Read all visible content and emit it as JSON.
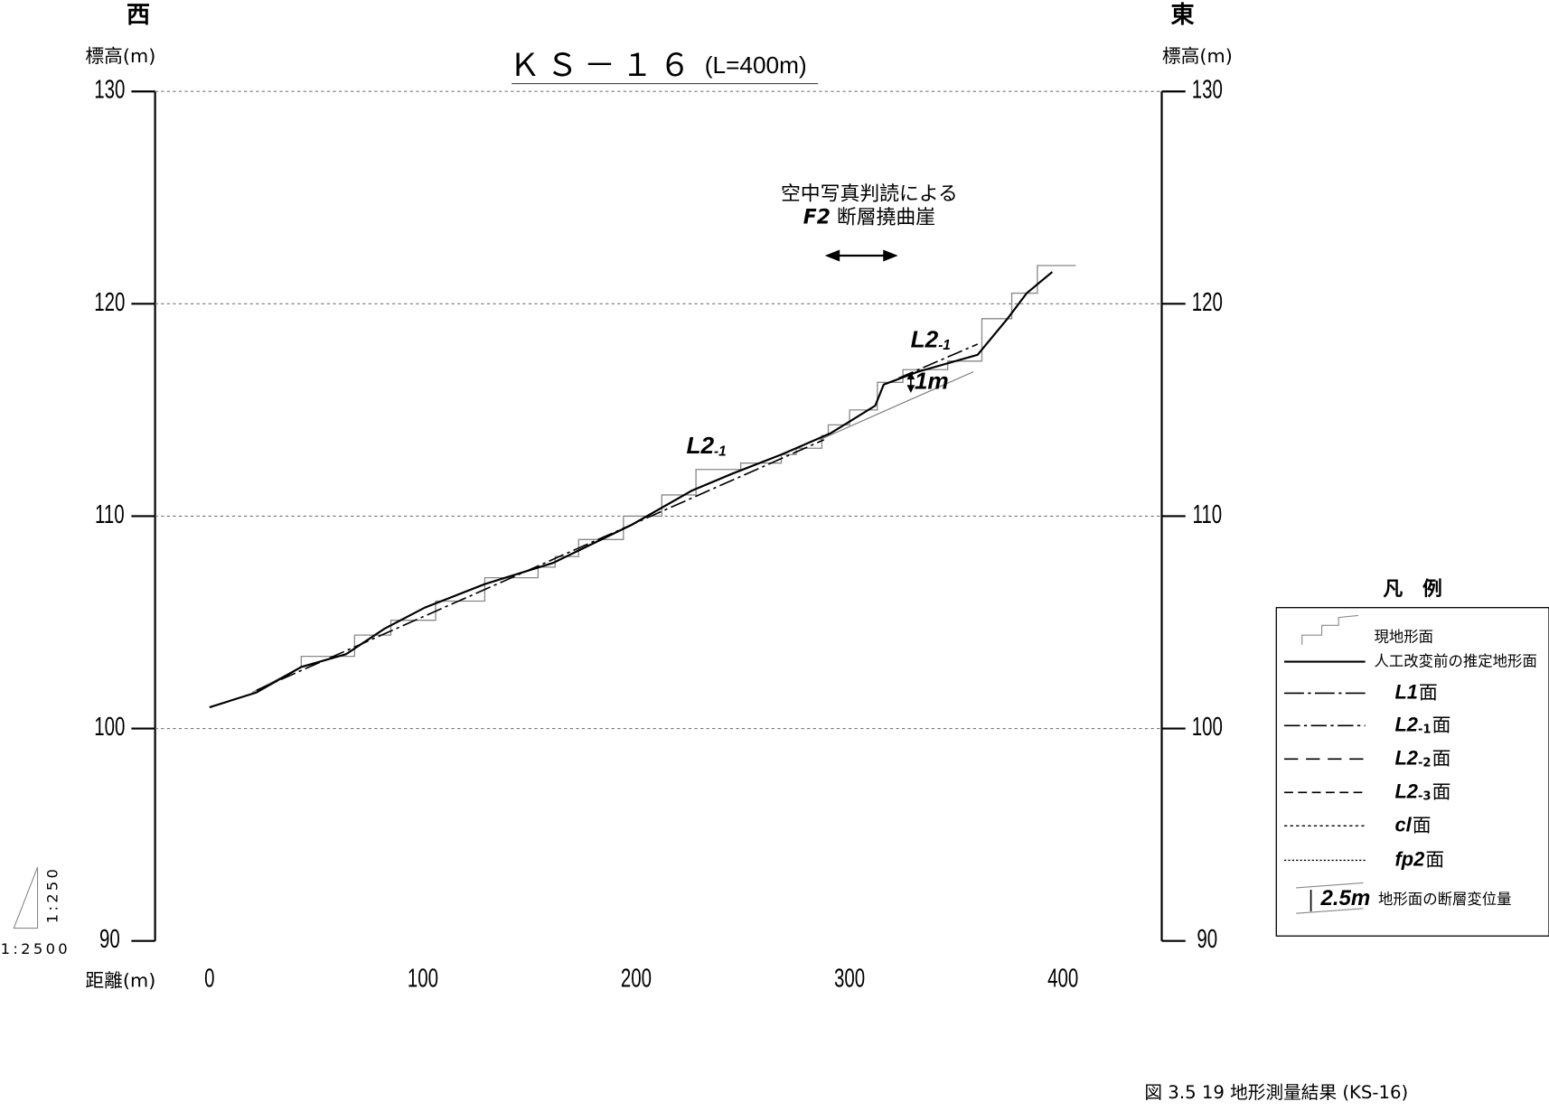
{
  "chart_data": {
    "type": "line",
    "title": "ＫＳ－１６",
    "subtitle": "(L=400m)",
    "west": "西",
    "east": "東",
    "ylabel": "標高(m)",
    "y2label": "標高(m)",
    "xlabel": "距離(m)",
    "xlim": [
      -25.5,
      446.3
    ],
    "xticks": [
      0,
      100,
      200,
      300,
      400
    ],
    "ylim": [
      90,
      130
    ],
    "yticks": [
      90,
      100,
      110,
      120,
      130
    ],
    "y2lim": [
      90,
      130
    ],
    "y2ticks": [
      90,
      100,
      110,
      120,
      130
    ],
    "grid": true,
    "series": [
      {
        "name": "現地形面",
        "color": "#888888",
        "style": "ground",
        "x": [
          20,
          43,
          43,
          68,
          68,
          85,
          85,
          106,
          106,
          129,
          129,
          154,
          154,
          162,
          162,
          173,
          173,
          194,
          194,
          212,
          212,
          228,
          228,
          249,
          249,
          268,
          268,
          275,
          275,
          287,
          287,
          290,
          290,
          300,
          300,
          313,
          313,
          325,
          325,
          346,
          346,
          362,
          362,
          376,
          376,
          388,
          388,
          406
        ],
        "values": [
          101.7,
          102.9,
          103.4,
          103.4,
          104.4,
          104.4,
          105.1,
          105.1,
          106.0,
          106.0,
          107.1,
          107.1,
          107.6,
          107.6,
          108.1,
          108.1,
          108.9,
          108.9,
          110.0,
          110.0,
          111.0,
          111.0,
          112.2,
          112.2,
          112.5,
          112.5,
          112.9,
          112.9,
          113.2,
          113.2,
          113.8,
          113.8,
          114.3,
          114.3,
          115.0,
          115.0,
          116.3,
          116.3,
          116.9,
          116.9,
          117.3,
          117.3,
          119.3,
          119.3,
          120.5,
          120.5,
          121.8,
          121.8
        ]
      },
      {
        "name": "人工改変前の推定地形面",
        "color": "#000000",
        "style": "solid",
        "x": [
          0,
          22,
          43,
          64,
          82,
          101,
          129,
          161,
          198,
          226,
          245,
          268,
          291,
          312,
          316,
          332,
          360,
          374,
          383,
          395
        ],
        "values": [
          101.0,
          101.7,
          102.9,
          103.5,
          104.7,
          105.7,
          106.8,
          107.8,
          109.6,
          111.2,
          112.0,
          112.9,
          113.9,
          115.2,
          116.2,
          116.8,
          117.6,
          119.3,
          120.5,
          121.5
        ]
      },
      {
        "color": "#000000",
        "style": "L2-1",
        "x": [
          22,
          288
        ],
        "values": [
          101.8,
          113.6
        ]
      },
      {
        "color": "#000000",
        "style": "L2-1",
        "x": [
          323,
          360
        ],
        "values": [
          116.5,
          118.1
        ]
      },
      {
        "color": "#777777",
        "style": "thin",
        "x": [
          286,
          358
        ],
        "values": [
          113.6,
          116.8
        ]
      }
    ],
    "annotation": [
      "空中写真判読による",
      "F2",
      "断層撓曲崖"
    ],
    "surface_label": {
      "main": "L2",
      "sub": "-1"
    },
    "displacement": {
      "value": 1,
      "label": "1m"
    },
    "legend": {
      "title": "凡　例",
      "items": [
        {
          "style": "ground",
          "label": "現地形面"
        },
        {
          "style": "solid",
          "label": "人工改変前の推定地形面"
        },
        {
          "style": "L1",
          "main": "L1",
          "label": "面"
        },
        {
          "style": "L2-1",
          "main": "L2",
          "sub": "-1",
          "label": "面"
        },
        {
          "style": "L2-2",
          "main": "L2",
          "sub": "-2",
          "label": "面"
        },
        {
          "style": "L2-3",
          "main": "L2",
          "sub": "-3",
          "label": "面"
        },
        {
          "style": "cl",
          "main": "cl",
          "label": "面"
        },
        {
          "style": "fp2",
          "main": "fp2",
          "label": "面"
        },
        {
          "style": "disp",
          "main": "2.5m",
          "label": "地形面の断層変位量"
        }
      ]
    },
    "scale": {
      "vertical": "1:250",
      "horizontal": "1:2500"
    },
    "caption": "図 3.5 19  地形測量結果 (KS-16)"
  }
}
